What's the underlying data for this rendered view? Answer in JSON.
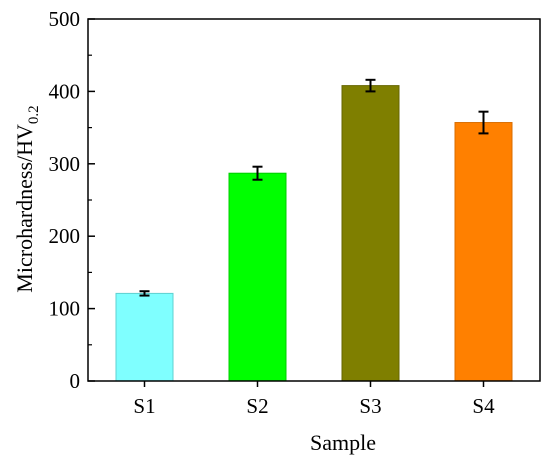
{
  "chart_data": {
    "type": "bar",
    "categories": [
      "S1",
      "S2",
      "S3",
      "S4"
    ],
    "values": [
      121,
      287,
      408,
      357
    ],
    "errors": [
      3,
      9,
      8,
      15
    ],
    "colors": [
      "#7fffff",
      "#00ff00",
      "#7f7f00",
      "#ff8000"
    ],
    "bar_edge_colors": [
      "#5fd0d0",
      "#00cc00",
      "#666600",
      "#d96d00"
    ],
    "title": "",
    "xlabel": "Sample",
    "ylabel": "Microhardness/HV",
    "ylabel_subscript": "0.2",
    "ylim": [
      0,
      500
    ],
    "yticks": [
      0,
      100,
      200,
      300,
      400,
      500
    ],
    "grid": false,
    "legend": "none"
  }
}
